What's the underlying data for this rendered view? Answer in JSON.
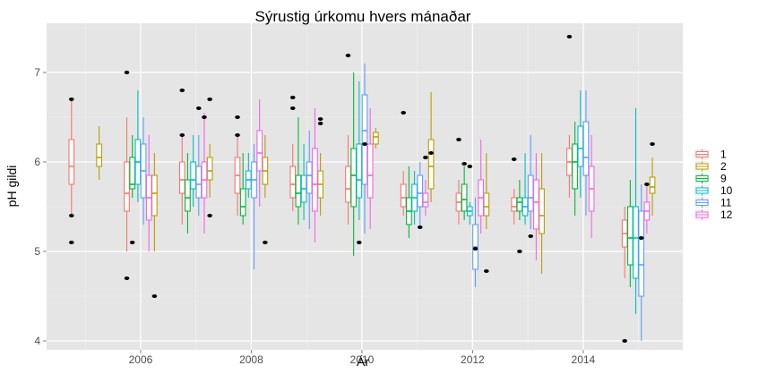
{
  "chart_data": {
    "type": "box",
    "title": "Sýrustig úrkomu hvers mánaðar",
    "xlabel": "Ár",
    "ylabel": "pH gildi",
    "xlim": [
      2004.3,
      2015.8
    ],
    "ylim": [
      3.9,
      7.55
    ],
    "x_ticks": [
      2006,
      2008,
      2010,
      2012,
      2014
    ],
    "y_ticks": [
      4,
      5,
      6,
      7
    ],
    "grid": true,
    "legend_position": "right",
    "series": [
      {
        "name": "1",
        "color": "#F8766D",
        "offset": -0.25,
        "boxes": [
          {
            "year": 2005,
            "min": 5.4,
            "q1": 5.75,
            "median": 5.95,
            "q3": 6.25,
            "max": 6.7,
            "outliers": [
              6.7,
              5.4,
              5.1
            ]
          },
          {
            "year": 2006,
            "min": 5.0,
            "q1": 5.45,
            "median": 5.65,
            "q3": 6.0,
            "max": 6.5,
            "outliers": [
              7.0,
              4.7
            ]
          },
          {
            "year": 2007,
            "min": 5.3,
            "q1": 5.65,
            "median": 5.8,
            "q3": 6.0,
            "max": 6.3,
            "outliers": [
              6.8,
              6.3
            ]
          },
          {
            "year": 2008,
            "min": 5.4,
            "q1": 5.65,
            "median": 5.85,
            "q3": 6.05,
            "max": 6.3,
            "outliers": [
              6.5,
              6.3
            ]
          },
          {
            "year": 2009,
            "min": 5.45,
            "q1": 5.6,
            "median": 5.75,
            "q3": 5.95,
            "max": 6.2,
            "outliers": [
              6.72,
              6.6
            ]
          },
          {
            "year": 2010,
            "min": 5.3,
            "q1": 5.55,
            "median": 5.7,
            "q3": 5.95,
            "max": 6.3,
            "outliers": [
              7.19
            ]
          },
          {
            "year": 2011,
            "min": 5.4,
            "q1": 5.5,
            "median": 5.6,
            "q3": 5.75,
            "max": 5.9,
            "outliers": [
              6.55
            ]
          },
          {
            "year": 2012,
            "min": 5.3,
            "q1": 5.45,
            "median": 5.55,
            "q3": 5.65,
            "max": 5.8,
            "outliers": [
              6.25
            ]
          },
          {
            "year": 2013,
            "min": 5.3,
            "q1": 5.45,
            "median": 5.5,
            "q3": 5.6,
            "max": 5.7,
            "outliers": [
              6.03
            ]
          },
          {
            "year": 2014,
            "min": 5.6,
            "q1": 5.85,
            "median": 6.0,
            "q3": 6.15,
            "max": 6.3,
            "outliers": [
              7.4
            ]
          },
          {
            "year": 2015,
            "min": 4.7,
            "q1": 5.05,
            "median": 5.2,
            "q3": 5.35,
            "max": 5.5,
            "outliers": [
              4.0
            ]
          }
        ]
      },
      {
        "name": "2",
        "color": "#B79F00",
        "offset": 0.25,
        "boxes": [
          {
            "year": 2005,
            "min": 5.8,
            "q1": 5.95,
            "median": 6.05,
            "q3": 6.2,
            "max": 6.4,
            "outliers": []
          },
          {
            "year": 2006,
            "min": 5.0,
            "q1": 5.4,
            "median": 5.65,
            "q3": 5.85,
            "max": 6.1,
            "outliers": [
              4.5
            ]
          },
          {
            "year": 2007,
            "min": 5.6,
            "q1": 5.8,
            "median": 5.9,
            "q3": 6.05,
            "max": 6.2,
            "outliers": [
              6.7,
              5.4
            ]
          },
          {
            "year": 2008,
            "min": 5.6,
            "q1": 5.75,
            "median": 5.9,
            "q3": 6.05,
            "max": 6.3,
            "outliers": [
              5.1
            ]
          },
          {
            "year": 2009,
            "min": 5.4,
            "q1": 5.6,
            "median": 5.75,
            "q3": 5.9,
            "max": 6.1,
            "outliers": [
              6.48,
              6.43
            ]
          },
          {
            "year": 2010,
            "min": 6.15,
            "q1": 6.2,
            "median": 6.28,
            "q3": 6.33,
            "max": 6.38,
            "outliers": []
          },
          {
            "year": 2011,
            "min": 5.55,
            "q1": 5.7,
            "median": 5.95,
            "q3": 6.25,
            "max": 6.78,
            "outliers": [
              6.1
            ]
          },
          {
            "year": 2012,
            "min": 5.25,
            "q1": 5.4,
            "median": 5.5,
            "q3": 5.65,
            "max": 6.1,
            "outliers": [
              4.78
            ]
          },
          {
            "year": 2013,
            "min": 4.75,
            "q1": 5.2,
            "median": 5.4,
            "q3": 5.7,
            "max": 6.1,
            "outliers": []
          },
          {
            "year": 2015,
            "min": 5.4,
            "q1": 5.65,
            "median": 5.72,
            "q3": 5.83,
            "max": 6.05,
            "outliers": [
              6.2
            ]
          }
        ]
      },
      {
        "name": "9",
        "color": "#00BA38",
        "offset": -0.15,
        "boxes": [
          {
            "year": 2006,
            "min": 5.6,
            "q1": 5.7,
            "median": 5.75,
            "q3": 6.05,
            "max": 6.3,
            "outliers": [
              5.1
            ]
          },
          {
            "year": 2007,
            "min": 5.2,
            "q1": 5.45,
            "median": 5.6,
            "q3": 5.8,
            "max": 6.1,
            "outliers": []
          },
          {
            "year": 2008,
            "min": 5.3,
            "q1": 5.4,
            "median": 5.5,
            "q3": 5.7,
            "max": 6.1,
            "outliers": []
          },
          {
            "year": 2009,
            "min": 5.3,
            "q1": 5.5,
            "median": 5.65,
            "q3": 5.85,
            "max": 6.5,
            "outliers": []
          },
          {
            "year": 2010,
            "min": 4.95,
            "q1": 5.5,
            "median": 5.85,
            "q3": 6.15,
            "max": 7.0,
            "outliers": []
          },
          {
            "year": 2011,
            "min": 5.15,
            "q1": 5.3,
            "median": 5.45,
            "q3": 5.6,
            "max": 5.95,
            "outliers": []
          },
          {
            "year": 2012,
            "min": 5.35,
            "q1": 5.45,
            "median": 5.58,
            "q3": 5.75,
            "max": 5.95,
            "outliers": [
              5.98
            ]
          },
          {
            "year": 2013,
            "min": 5.35,
            "q1": 5.45,
            "median": 5.55,
            "q3": 5.6,
            "max": 5.8,
            "outliers": [
              5.0
            ]
          },
          {
            "year": 2014,
            "min": 5.4,
            "q1": 5.7,
            "median": 6.0,
            "q3": 6.2,
            "max": 6.45,
            "outliers": []
          },
          {
            "year": 2015,
            "min": 4.6,
            "q1": 4.85,
            "median": 5.15,
            "q3": 5.5,
            "max": 5.8,
            "outliers": []
          }
        ]
      },
      {
        "name": "10",
        "color": "#00BFC4",
        "offset": -0.05,
        "boxes": [
          {
            "year": 2006,
            "min": 5.55,
            "q1": 5.75,
            "median": 6.0,
            "q3": 6.25,
            "max": 6.8,
            "outliers": []
          },
          {
            "year": 2007,
            "min": 5.5,
            "q1": 5.7,
            "median": 5.8,
            "q3": 6.0,
            "max": 6.3,
            "outliers": []
          },
          {
            "year": 2008,
            "min": 5.6,
            "q1": 5.7,
            "median": 5.8,
            "q3": 5.9,
            "max": 6.1,
            "outliers": []
          },
          {
            "year": 2009,
            "min": 5.35,
            "q1": 5.55,
            "median": 5.7,
            "q3": 5.85,
            "max": 6.2,
            "outliers": []
          },
          {
            "year": 2010,
            "min": 5.35,
            "q1": 5.6,
            "median": 5.8,
            "q3": 6.2,
            "max": 6.9,
            "outliers": [
              5.1
            ]
          },
          {
            "year": 2011,
            "min": 5.3,
            "q1": 5.45,
            "median": 5.6,
            "q3": 5.75,
            "max": 5.9,
            "outliers": []
          },
          {
            "year": 2012,
            "min": 5.3,
            "q1": 5.4,
            "median": 5.45,
            "q3": 5.5,
            "max": 5.55,
            "outliers": [
              5.95
            ]
          },
          {
            "year": 2013,
            "min": 5.3,
            "q1": 5.4,
            "median": 5.5,
            "q3": 5.6,
            "max": 6.1,
            "outliers": []
          },
          {
            "year": 2014,
            "min": 5.6,
            "q1": 5.95,
            "median": 6.15,
            "q3": 6.4,
            "max": 6.8,
            "outliers": []
          },
          {
            "year": 2015,
            "min": 4.3,
            "q1": 4.7,
            "median": 5.15,
            "q3": 5.5,
            "max": 6.6,
            "outliers": []
          }
        ]
      },
      {
        "name": "11",
        "color": "#619CFF",
        "offset": 0.05,
        "boxes": [
          {
            "year": 2006,
            "min": 5.3,
            "q1": 5.6,
            "median": 5.9,
            "q3": 6.2,
            "max": 6.5,
            "outliers": []
          },
          {
            "year": 2007,
            "min": 5.4,
            "q1": 5.6,
            "median": 5.75,
            "q3": 5.95,
            "max": 6.3,
            "outliers": [
              6.6
            ]
          },
          {
            "year": 2008,
            "min": 4.8,
            "q1": 5.6,
            "median": 5.8,
            "q3": 6.0,
            "max": 6.2,
            "outliers": []
          },
          {
            "year": 2009,
            "min": 5.25,
            "q1": 5.65,
            "median": 5.85,
            "q3": 6.0,
            "max": 6.35,
            "outliers": []
          },
          {
            "year": 2010,
            "min": 5.2,
            "q1": 5.75,
            "median": 6.35,
            "q3": 6.75,
            "max": 7.1,
            "outliers": [
              6.2
            ]
          },
          {
            "year": 2011,
            "min": 5.25,
            "q1": 5.5,
            "median": 5.65,
            "q3": 5.85,
            "max": 6.0,
            "outliers": [
              5.27
            ]
          },
          {
            "year": 2012,
            "min": 4.6,
            "q1": 4.8,
            "median": 5.05,
            "q3": 5.3,
            "max": 5.6,
            "outliers": [
              5.03
            ]
          },
          {
            "year": 2013,
            "min": 5.25,
            "q1": 5.45,
            "median": 5.6,
            "q3": 5.85,
            "max": 6.3,
            "outliers": [
              5.17
            ]
          },
          {
            "year": 2014,
            "min": 5.4,
            "q1": 5.85,
            "median": 6.05,
            "q3": 6.45,
            "max": 6.8,
            "outliers": []
          },
          {
            "year": 2015,
            "min": 4.0,
            "q1": 4.5,
            "median": 4.85,
            "q3": 5.45,
            "max": 5.75,
            "outliers": [
              5.15
            ]
          }
        ]
      },
      {
        "name": "12",
        "color": "#F564E3",
        "offset": 0.15,
        "boxes": [
          {
            "year": 2006,
            "min": 5.0,
            "q1": 5.35,
            "median": 5.6,
            "q3": 5.85,
            "max": 6.3,
            "outliers": []
          },
          {
            "year": 2007,
            "min": 5.2,
            "q1": 5.6,
            "median": 5.8,
            "q3": 6.0,
            "max": 6.55,
            "outliers": [
              6.5
            ]
          },
          {
            "year": 2008,
            "min": 5.5,
            "q1": 5.9,
            "median": 6.1,
            "q3": 6.35,
            "max": 6.7,
            "outliers": []
          },
          {
            "year": 2009,
            "min": 5.1,
            "q1": 5.45,
            "median": 5.75,
            "q3": 6.15,
            "max": 6.6,
            "outliers": []
          },
          {
            "year": 2010,
            "min": 5.25,
            "q1": 5.6,
            "median": 5.85,
            "q3": 6.2,
            "max": 6.6,
            "outliers": []
          },
          {
            "year": 2011,
            "min": 5.4,
            "q1": 5.5,
            "median": 5.55,
            "q3": 5.65,
            "max": 5.8,
            "outliers": [
              6.05
            ]
          },
          {
            "year": 2012,
            "min": 5.2,
            "q1": 5.4,
            "median": 5.6,
            "q3": 5.8,
            "max": 6.25,
            "outliers": []
          },
          {
            "year": 2013,
            "min": 4.9,
            "q1": 5.25,
            "median": 5.55,
            "q3": 5.8,
            "max": 6.1,
            "outliers": []
          },
          {
            "year": 2014,
            "min": 5.15,
            "q1": 5.45,
            "median": 5.7,
            "q3": 5.95,
            "max": 6.3,
            "outliers": []
          },
          {
            "year": 2015,
            "min": 5.2,
            "q1": 5.35,
            "median": 5.45,
            "q3": 5.55,
            "max": 5.75,
            "outliers": [
              5.75
            ]
          }
        ]
      }
    ]
  }
}
